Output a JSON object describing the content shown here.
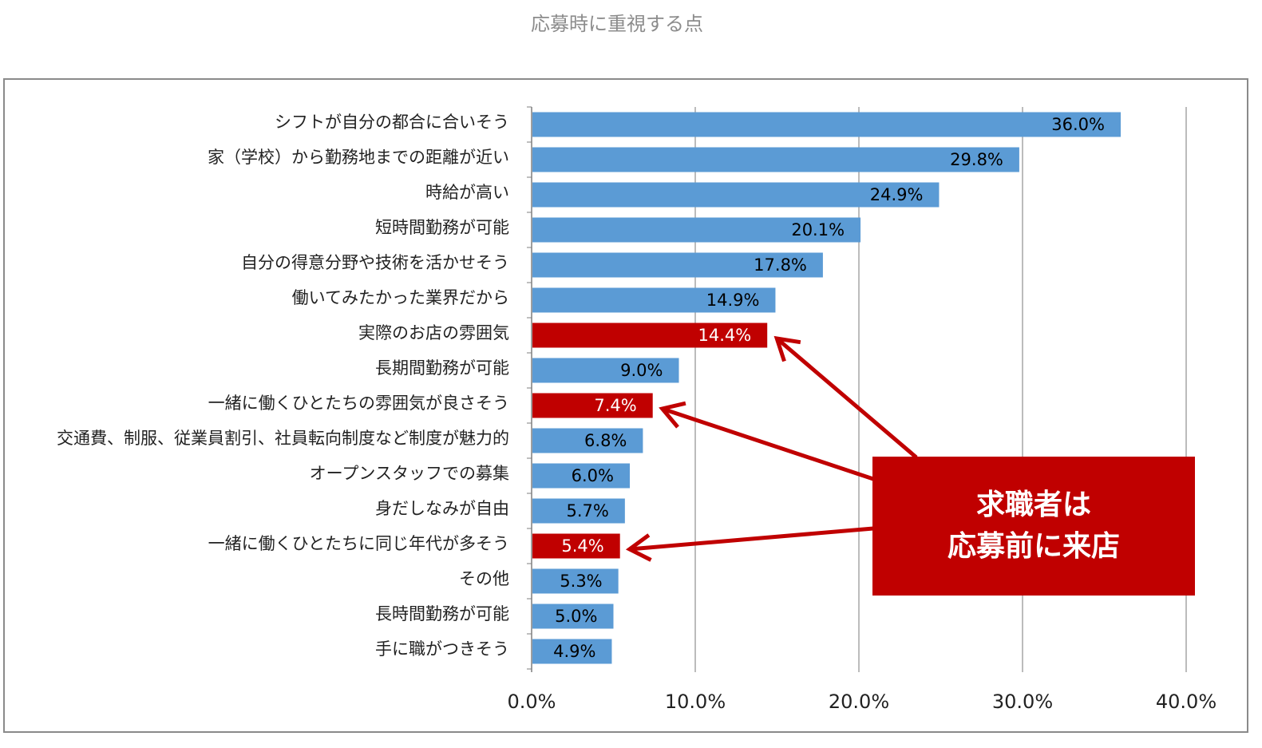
{
  "chart_data": {
    "type": "bar",
    "orientation": "horizontal",
    "title": "応募時に重視する点",
    "categories": [
      "シフトが自分の都合に合いそう",
      "家（学校）から勤務地までの距離が近い",
      "時給が高い",
      "短時間勤務が可能",
      "自分の得意分野や技術を活かせそう",
      "働いてみたかった業界だから",
      "実際のお店の雰囲気",
      "長期間勤務が可能",
      "一緒に働くひとたちの雰囲気が良さそう",
      "交通費、制服、従業員割引、社員転向制度など制度が魅力的",
      "オープンスタッフでの募集",
      "身だしなみが自由",
      "一緒に働くひとたちに同じ年代が多そう",
      "その他",
      "長時間勤務が可能",
      "手に職がつきそう"
    ],
    "values": [
      36.0,
      29.8,
      24.9,
      20.1,
      17.8,
      14.9,
      14.4,
      9.0,
      7.4,
      6.8,
      6.0,
      5.7,
      5.4,
      5.3,
      5.0,
      4.9
    ],
    "value_labels": [
      "36.0%",
      "29.8%",
      "24.9%",
      "20.1%",
      "17.8%",
      "14.9%",
      "14.4%",
      "9.0%",
      "7.4%",
      "6.8%",
      "6.0%",
      "5.7%",
      "5.4%",
      "5.3%",
      "5.0%",
      "4.9%"
    ],
    "highlighted": [
      false,
      false,
      false,
      false,
      false,
      false,
      true,
      false,
      true,
      false,
      false,
      false,
      true,
      false,
      false,
      false
    ],
    "xlim": [
      0,
      40
    ],
    "x_ticks": [
      0,
      10,
      20,
      30,
      40
    ],
    "x_tick_labels": [
      "0.0%",
      "10.0%",
      "20.0%",
      "30.0%",
      "40.0%"
    ],
    "grid": true,
    "colors": {
      "bar": "#5b9bd5",
      "highlight": "#c00000",
      "grid": "#a6a6a6",
      "value_text_normal": "#000000",
      "value_text_highlight": "#ffffff"
    }
  },
  "callout": {
    "line1": "求職者は",
    "line2": "応募前に来店",
    "color": "#c00000"
  }
}
